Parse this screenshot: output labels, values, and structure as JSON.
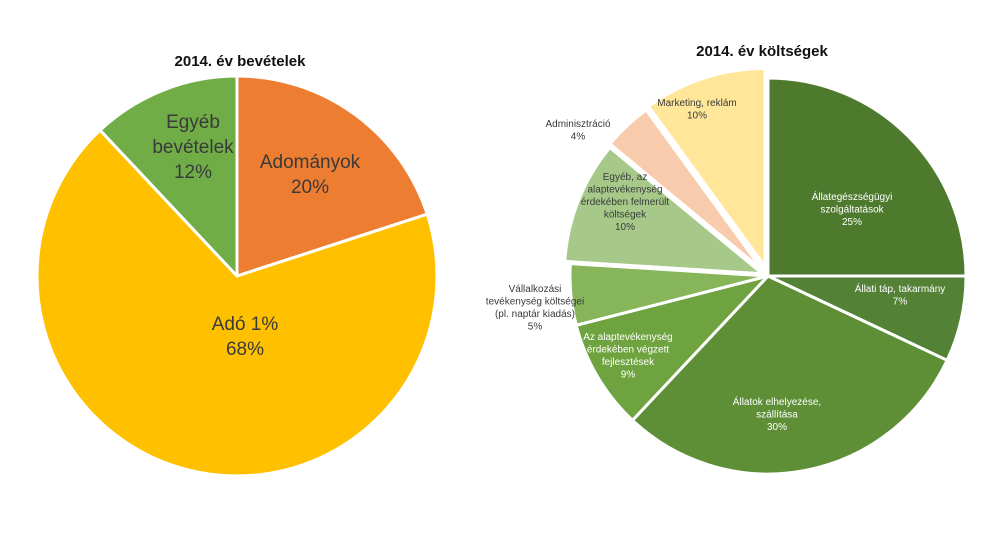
{
  "chart_data": [
    {
      "type": "pie",
      "title": "2014. év bevételek",
      "slices": [
        {
          "label": [
            "Adományok"
          ],
          "value": 20,
          "pct_label": "20%",
          "color": "#ED7D31",
          "text_color": "#3a3a3a"
        },
        {
          "label": [
            "Adó 1%"
          ],
          "value": 68,
          "pct_label": "68%",
          "color": "#FFC000",
          "text_color": "#3a3a3a"
        },
        {
          "label": [
            "Egyéb",
            "bevételek"
          ],
          "value": 12,
          "pct_label": "12%",
          "color": "#70AD47",
          "text_color": "#3a3a3a"
        }
      ]
    },
    {
      "type": "pie",
      "title": "2014. év költségek",
      "slices": [
        {
          "label": [
            "Állategészségügyi",
            "szolgáltatások"
          ],
          "value": 25,
          "pct_label": "25%",
          "color": "#4E7A2E",
          "text_color": "#ffffff"
        },
        {
          "label": [
            "Állati táp, takarmány"
          ],
          "value": 7,
          "pct_label": "7%",
          "color": "#538135",
          "text_color": "#ffffff"
        },
        {
          "label": [
            "Állatok elhelyezése,",
            "szállítása"
          ],
          "value": 30,
          "pct_label": "30%",
          "color": "#5E8F36",
          "text_color": "#ffffff"
        },
        {
          "label": [
            "Az alaptevékenység",
            "érdekében végzett",
            "fejlesztések"
          ],
          "value": 9,
          "pct_label": "9%",
          "color": "#6FA33F",
          "text_color": "#ffffff"
        },
        {
          "label": [
            "Vállalkozási",
            "tevékenység költségei",
            "(pl. naptár kiadás)"
          ],
          "value": 5,
          "pct_label": "5%",
          "color": "#86B55A",
          "text_color": "#3a3a3a"
        },
        {
          "label": [
            "Egyéb, az",
            "alaptevékenység",
            "érdekében felmerült",
            "költségek"
          ],
          "value": 10,
          "pct_label": "10%",
          "color": "#A6C98A",
          "text_color": "#3a3a3a"
        },
        {
          "label": [
            "Adminisztráció"
          ],
          "value": 4,
          "pct_label": "4%",
          "color": "#F8CBAD",
          "text_color": "#3a3a3a"
        },
        {
          "label": [
            "Marketing, reklám"
          ],
          "value": 10,
          "pct_label": "10%",
          "color": "#FFE699",
          "text_color": "#3a3a3a"
        }
      ]
    }
  ]
}
